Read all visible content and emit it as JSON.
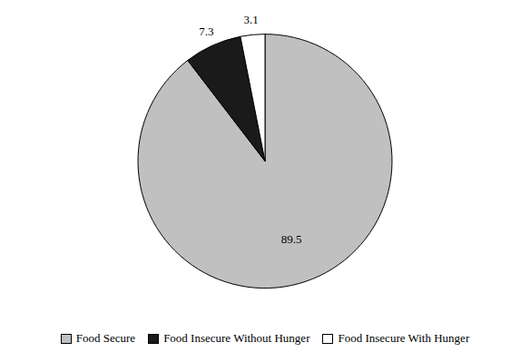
{
  "chart_data": {
    "type": "pie",
    "categories": [
      "Food Secure",
      "Food Insecure Without Hunger",
      "Food Insecure With Hunger"
    ],
    "values": [
      89.5,
      7.3,
      3.1
    ],
    "colors": [
      "#c0c0c0",
      "#1a1a1a",
      "#ffffff"
    ],
    "data_labels": true,
    "legend": "bottom"
  }
}
